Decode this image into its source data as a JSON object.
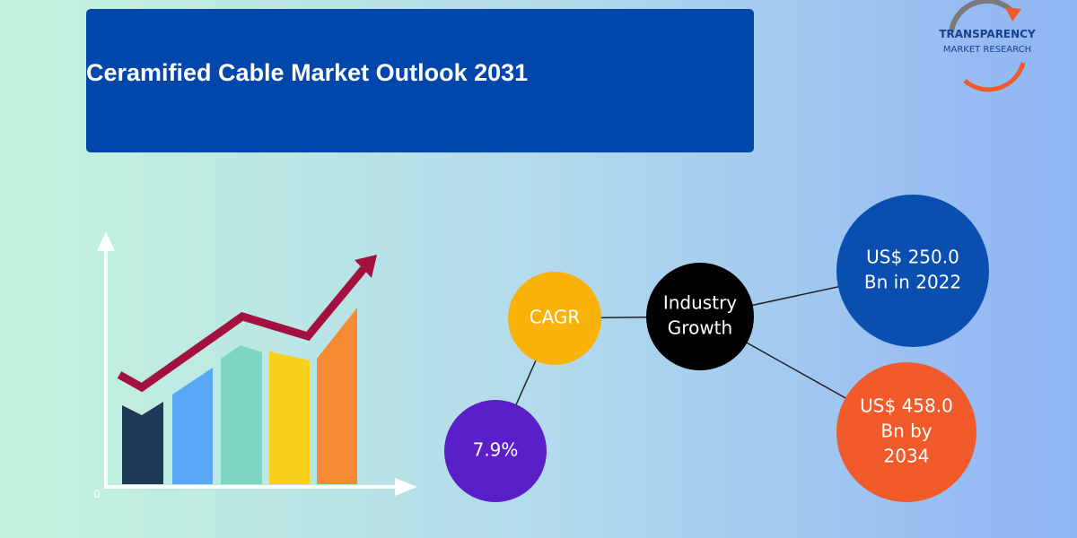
{
  "header": {
    "title": "Ceramified Cable Market Outlook 2031"
  },
  "logo": {
    "line1": "TRANSPARENCY",
    "line2": "MARKET RESEARCH"
  },
  "illustration": {
    "axis_origin_label": "0"
  },
  "nodes": [
    {
      "lines": [
        "CAGR"
      ]
    },
    {
      "lines": [
        "Industry",
        "Growth"
      ]
    },
    {
      "lines": [
        "US$ 250.0",
        "Bn in 2022"
      ]
    },
    {
      "lines": [
        "US$ 458.0",
        "Bn by",
        "2034"
      ]
    },
    {
      "lines": [
        "7.9%"
      ]
    }
  ]
}
